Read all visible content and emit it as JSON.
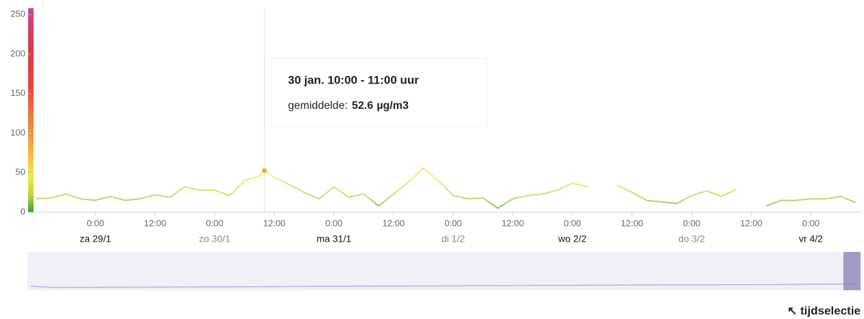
{
  "chart_data": {
    "type": "line",
    "ylim": [
      0,
      258
    ],
    "yticks": [
      0,
      50,
      100,
      150,
      200,
      250
    ],
    "xlim": [
      -13,
      154
    ],
    "xticks": [
      {
        "value": 0,
        "label": "0:00"
      },
      {
        "value": 12,
        "label": "12:00"
      },
      {
        "value": 24,
        "label": "0:00"
      },
      {
        "value": 36,
        "label": "12:00"
      },
      {
        "value": 48,
        "label": "0:00"
      },
      {
        "value": 60,
        "label": "12:00"
      },
      {
        "value": 72,
        "label": "0:00"
      },
      {
        "value": 84,
        "label": "12:00"
      },
      {
        "value": 96,
        "label": "0:00"
      },
      {
        "value": 108,
        "label": "12:00"
      },
      {
        "value": 120,
        "label": "0:00"
      },
      {
        "value": 132,
        "label": "12:00"
      },
      {
        "value": 144,
        "label": "0:00"
      }
    ],
    "day_labels": [
      {
        "value": 0,
        "label": "za 29/1"
      },
      {
        "value": 24,
        "label": "zo 30/1"
      },
      {
        "value": 48,
        "label": "ma 31/1"
      },
      {
        "value": 72,
        "label": "di 1/2"
      },
      {
        "value": 96,
        "label": "wo 2/2"
      },
      {
        "value": 120,
        "label": "do 3/2"
      },
      {
        "value": 144,
        "label": "vr 4/2"
      }
    ],
    "color_scale": [
      {
        "value": 0,
        "color": "#3f9b3a"
      },
      {
        "value": 20,
        "color": "#b8d43a"
      },
      {
        "value": 45,
        "color": "#f2e94a"
      },
      {
        "value": 90,
        "color": "#f2a33a"
      },
      {
        "value": 160,
        "color": "#e8443a"
      },
      {
        "value": 210,
        "color": "#d63a4a"
      },
      {
        "value": 258,
        "color": "#c8459a"
      }
    ],
    "series": [
      {
        "x": [
          -12,
          -9,
          -6,
          -3,
          0,
          3,
          6,
          9,
          12,
          15,
          18,
          21,
          24,
          27,
          30,
          33,
          34,
          36,
          39,
          42,
          45,
          48,
          51,
          54,
          57,
          60,
          63,
          66,
          69,
          72,
          75,
          78,
          81,
          84,
          87,
          90,
          93,
          96,
          99,
          102,
          105,
          108,
          111,
          114,
          117,
          120,
          123,
          126,
          129,
          132,
          135,
          138,
          141,
          144,
          147,
          150,
          153
        ],
        "values": [
          17,
          18,
          23,
          17,
          15,
          20,
          15,
          17,
          22,
          19,
          32,
          28,
          28,
          21,
          40,
          46,
          52.6,
          44,
          35,
          25,
          17,
          32,
          19,
          23,
          8,
          23,
          38,
          56,
          40,
          21,
          17,
          18,
          5,
          17,
          21,
          23,
          28,
          37,
          32,
          null,
          34,
          25,
          15,
          13,
          11,
          21,
          27,
          20,
          29,
          null,
          8,
          15,
          15,
          17,
          17,
          20,
          12
        ]
      }
    ],
    "tooltip": {
      "x": 34,
      "title": "30 jan. 10:00 - 11:00 uur",
      "label": "gemiddelde:",
      "value": 52.6,
      "unit": "µg/m3"
    },
    "navigator_label": "↖ tijdselectie"
  }
}
